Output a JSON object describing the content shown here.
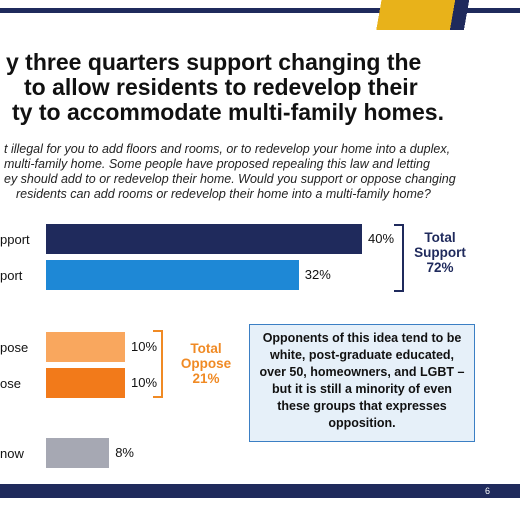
{
  "slide": {
    "headline_lines": [
      "y three quarters support changing the",
      "to allow residents to redevelop their",
      "ty to accommodate multi-family homes."
    ],
    "question_lines": [
      "t illegal for you to add floors and rooms, or to redevelop your home into a duplex,",
      "multi-family home. Some people have proposed repealing this law and letting",
      "ey should add to or redevelop their home. Would you support or oppose changing",
      "residents can add rooms or redevelop their home into a multi-family home?"
    ],
    "callout_text": "Opponents of this idea tend to be white, post-graduate educated, over 50, homeowners, and LGBT – but it is still a minority of even these groups that expresses opposition.",
    "page_number": "6",
    "colors": {
      "navy": "#1f2a5c",
      "gold": "#e8b21a",
      "support_total": "#1f2a5c",
      "oppose_total": "#f08a24"
    }
  },
  "chart_data": {
    "type": "bar",
    "orientation": "horizontal",
    "categories": [
      "pport",
      "port",
      "pose",
      "ose",
      "now"
    ],
    "values": [
      40,
      32,
      10,
      10,
      8
    ],
    "value_labels": [
      "40%",
      "32%",
      "10%",
      "10%",
      "8%"
    ],
    "colors": [
      "#1f2a5c",
      "#1e88d6",
      "#f9a75e",
      "#f27a1a",
      "#a6a8b3"
    ],
    "xlim": [
      0,
      40
    ],
    "grid": false,
    "totals": [
      {
        "label_lines": [
          "Total",
          "Support",
          "72%"
        ],
        "color": "#1f2a5c"
      },
      {
        "label_lines": [
          "Total",
          "Oppose",
          "21%"
        ],
        "color": "#f08a24"
      }
    ]
  }
}
